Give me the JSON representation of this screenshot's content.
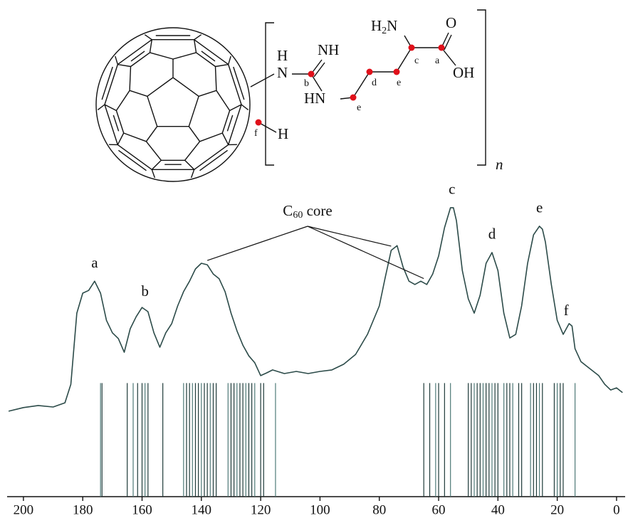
{
  "chart_data": {
    "type": "line",
    "color": "#2c4b49",
    "x": [
      205,
      200,
      195,
      190,
      186,
      184,
      182,
      180,
      178,
      176,
      174,
      172,
      170,
      168,
      166,
      164,
      162,
      160,
      158,
      156,
      154,
      152,
      150,
      148,
      146,
      144,
      142,
      140,
      138,
      136,
      134,
      132,
      130,
      128,
      126,
      124,
      122,
      120,
      118,
      116,
      112,
      108,
      104,
      100,
      96,
      92,
      88,
      84,
      80,
      78,
      76,
      74,
      72,
      70,
      68,
      66,
      64,
      62,
      60,
      58,
      56,
      55,
      54,
      52,
      50,
      48,
      46,
      44,
      42,
      40,
      38,
      36,
      34,
      32,
      30,
      28,
      26,
      25,
      24,
      22,
      20,
      18,
      16,
      15,
      14,
      12,
      10,
      6,
      4,
      2,
      0,
      -2
    ],
    "values": [
      28.6,
      29.8,
      30.5,
      30.0,
      31.4,
      37.6,
      61.4,
      68.1,
      69.0,
      72.1,
      68.1,
      59.0,
      54.8,
      52.9,
      48.3,
      56.2,
      60.2,
      63.3,
      61.9,
      54.8,
      50.0,
      54.8,
      57.9,
      63.8,
      68.6,
      72.1,
      76.2,
      78.1,
      77.6,
      74.5,
      72.9,
      68.6,
      61.4,
      55.5,
      50.7,
      47.1,
      44.8,
      40.5,
      41.4,
      42.4,
      41.2,
      41.9,
      41.2,
      41.9,
      42.4,
      44.3,
      47.6,
      54.3,
      63.8,
      73.3,
      82.4,
      84.0,
      76.9,
      72.1,
      71.0,
      72.1,
      71.0,
      74.5,
      80.5,
      90.0,
      96.7,
      96.7,
      92.4,
      75.7,
      66.2,
      61.4,
      67.4,
      78.1,
      81.7,
      75.7,
      61.4,
      53.1,
      54.3,
      63.8,
      78.1,
      87.6,
      90.5,
      89.5,
      85.2,
      71.0,
      59.0,
      54.3,
      57.9,
      57.1,
      49.5,
      45.2,
      43.6,
      40.5,
      37.6,
      35.7,
      36.4,
      34.8
    ],
    "xlim": [
      205.5,
      -2.9
    ],
    "xticks": [
      200,
      180,
      160,
      140,
      120,
      100,
      80,
      60,
      40,
      20,
      0
    ],
    "ylim": [
      0,
      100
    ],
    "sticks": {
      "height": 38,
      "x": [
        174,
        173.5,
        165,
        163,
        161.5,
        160,
        159,
        158,
        153,
        146,
        145,
        144,
        143,
        142,
        141,
        140,
        139,
        138,
        137,
        136,
        135,
        131,
        130,
        129,
        128,
        127,
        126,
        125,
        124,
        123,
        122,
        120,
        119,
        115,
        65,
        63,
        61,
        60,
        58,
        56,
        50,
        49,
        48,
        47,
        46,
        45,
        44,
        43,
        42,
        41,
        40,
        38,
        37,
        36,
        35,
        33,
        32,
        29,
        28,
        27,
        26,
        25,
        21,
        20,
        19,
        18,
        14
      ]
    },
    "annotations": [
      {
        "text": "a",
        "x": 176
      },
      {
        "text": "b",
        "x": 159
      },
      {
        "text": "c",
        "x": 55.5
      },
      {
        "text": "d",
        "x": 42
      },
      {
        "text": "e",
        "x": 26
      },
      {
        "text": "f",
        "x": 17
      }
    ],
    "core_label": {
      "text": "C",
      "sub": "60",
      "tail": " core",
      "targets": [
        138,
        76,
        65
      ]
    }
  },
  "structure": {
    "h_top": "H",
    "n_top": "N",
    "nh": "NH",
    "hn": "HN",
    "h2n": {
      "text": "H",
      "sub": "2",
      "tail": "N"
    },
    "o": "O",
    "oh": "OH",
    "h_f": "H",
    "n_sub": "n",
    "site_labels": {
      "a": "a",
      "b": "b",
      "c": "c",
      "d": "d",
      "e1": "e",
      "e2": "e",
      "f": "f"
    }
  }
}
